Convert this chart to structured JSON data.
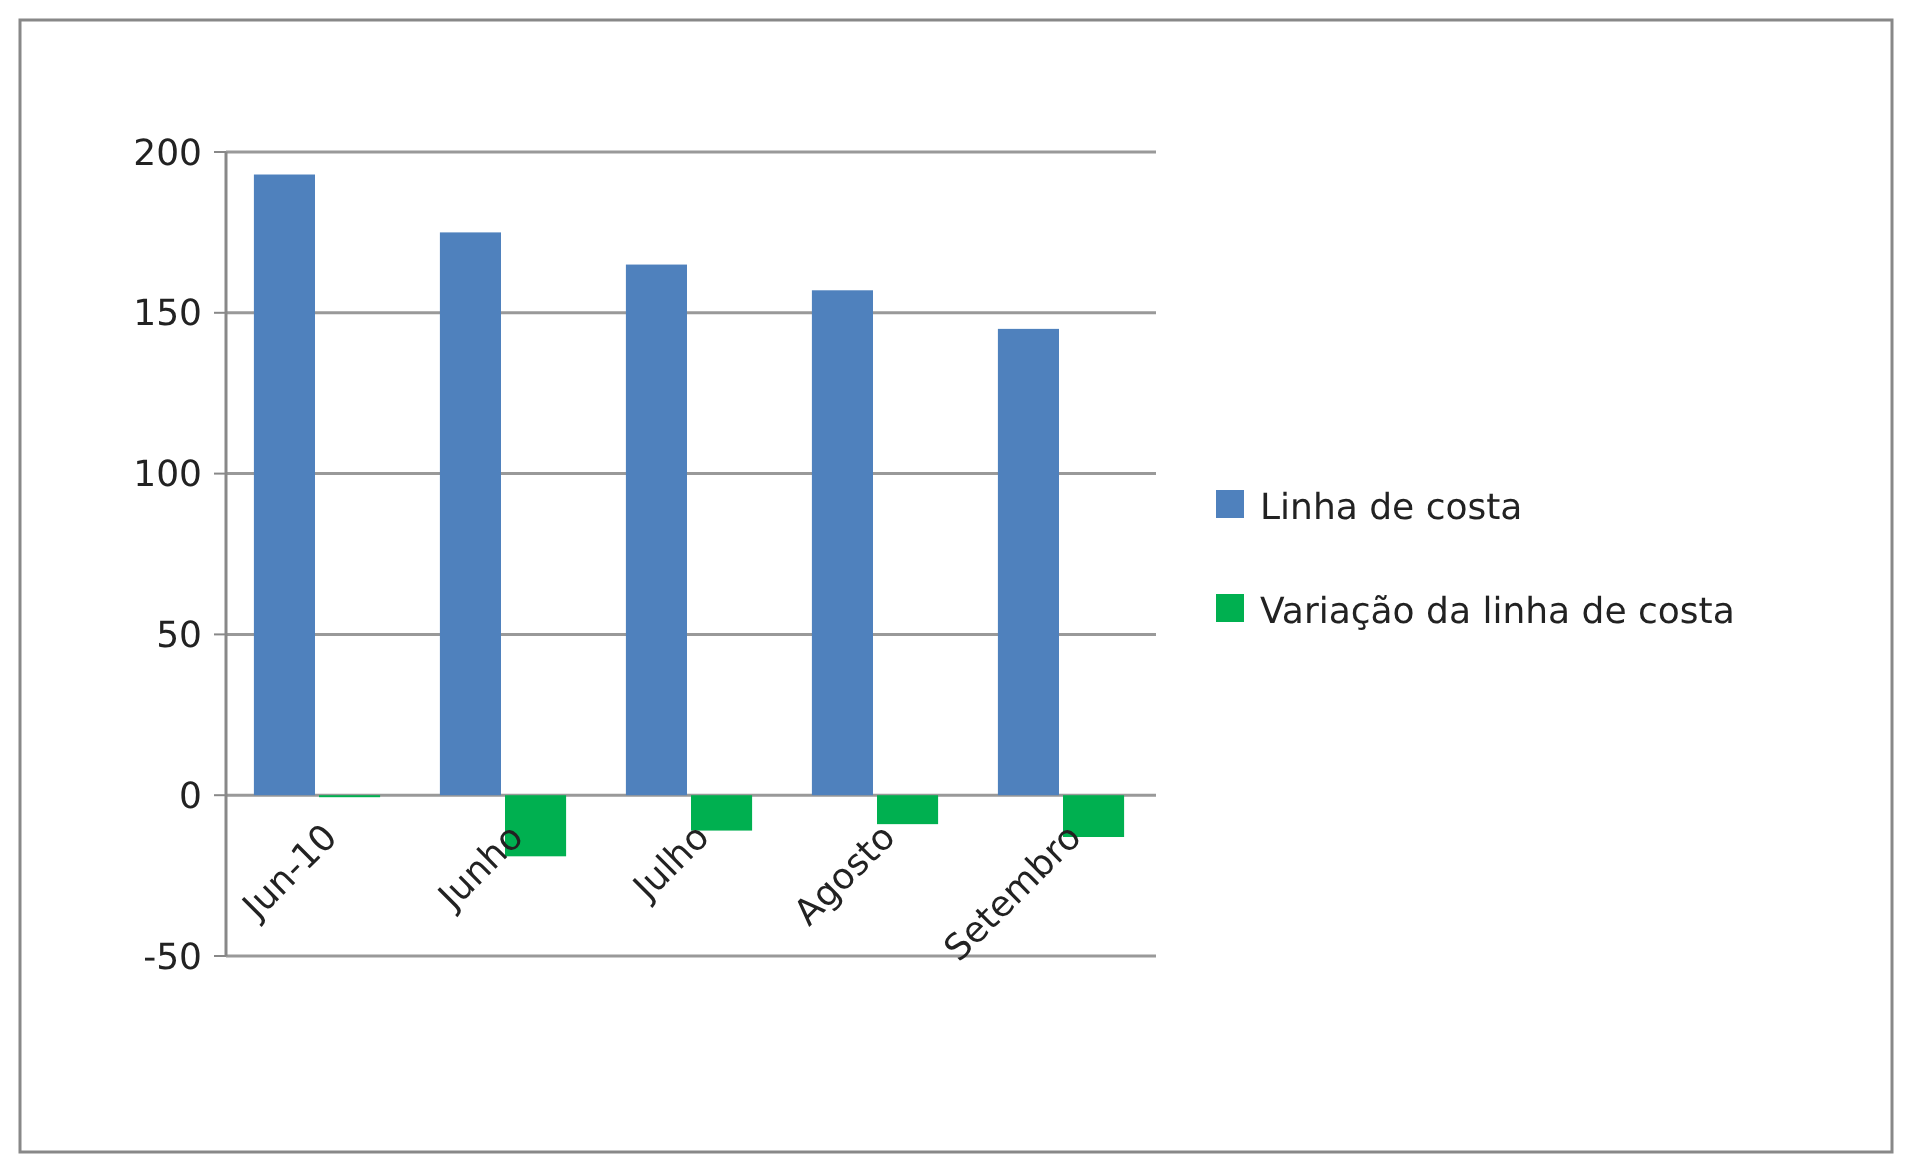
{
  "chart_data": {
    "type": "bar",
    "categories": [
      "Jun-10",
      "Junho",
      "Julho",
      "Agosto",
      "Setembro"
    ],
    "series": [
      {
        "name": "Linha de costa",
        "color": "#4f81bd",
        "values": [
          193,
          175,
          165,
          157,
          145
        ]
      },
      {
        "name": "Variação da linha de costa",
        "color": "#00b050",
        "values": [
          0,
          -19,
          -11,
          -9,
          -13
        ]
      }
    ],
    "ylim": [
      -50,
      200
    ],
    "yticks": [
      -50,
      0,
      50,
      100,
      150,
      200
    ],
    "grid": "y",
    "legend": "right"
  }
}
